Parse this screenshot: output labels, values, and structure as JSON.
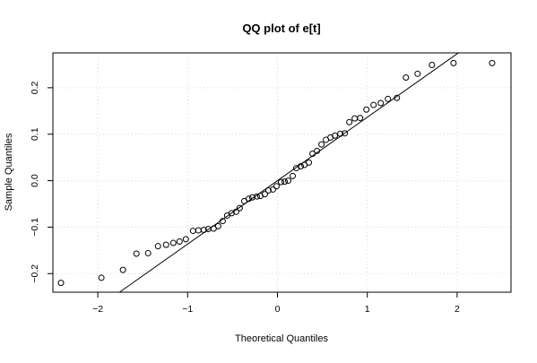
{
  "chart_data": {
    "type": "scatter",
    "title": "QQ plot of e[t]",
    "xlabel": "Theoretical Quantiles",
    "ylabel": "Sample Quantiles",
    "xlim": [
      -2.5,
      2.6
    ],
    "ylim": [
      -0.24,
      0.275
    ],
    "x_ticks": [
      -2,
      -1,
      0,
      1,
      2
    ],
    "x_tick_labels": [
      "−2",
      "−1",
      "0",
      "1",
      "2"
    ],
    "y_ticks": [
      -0.2,
      -0.1,
      0.0,
      0.1,
      0.2
    ],
    "y_tick_labels": [
      "−0.2",
      "−0.1",
      "0.0",
      "0.1",
      "0.2"
    ],
    "grid": true,
    "reference_line": {
      "intercept": 0.0,
      "slope": 0.1365
    },
    "points": {
      "x": [
        -2.41,
        -1.96,
        -1.72,
        -1.57,
        -1.44,
        -1.33,
        -1.24,
        -1.16,
        -1.09,
        -1.02,
        -0.94,
        -0.88,
        -0.82,
        -0.77,
        -0.71,
        -0.66,
        -0.61,
        -0.56,
        -0.51,
        -0.46,
        -0.42,
        -0.37,
        -0.32,
        -0.28,
        -0.23,
        -0.19,
        -0.14,
        -0.1,
        -0.05,
        -0.01,
        0.04,
        0.08,
        0.12,
        0.17,
        0.21,
        0.26,
        0.3,
        0.35,
        0.39,
        0.44,
        0.49,
        0.54,
        0.59,
        0.64,
        0.7,
        0.75,
        0.8,
        0.86,
        0.92,
        0.99,
        1.07,
        1.15,
        1.23,
        1.33,
        1.43,
        1.56,
        1.72,
        1.96,
        2.39
      ],
      "y": [
        -0.22,
        -0.209,
        -0.192,
        -0.157,
        -0.156,
        -0.141,
        -0.138,
        -0.134,
        -0.131,
        -0.126,
        -0.108,
        -0.107,
        -0.106,
        -0.104,
        -0.103,
        -0.098,
        -0.087,
        -0.075,
        -0.07,
        -0.067,
        -0.059,
        -0.044,
        -0.039,
        -0.036,
        -0.034,
        -0.033,
        -0.029,
        -0.021,
        -0.019,
        -0.012,
        -0.003,
        -0.002,
        0.0,
        0.01,
        0.027,
        0.031,
        0.034,
        0.039,
        0.058,
        0.064,
        0.078,
        0.088,
        0.093,
        0.097,
        0.101,
        0.102,
        0.126,
        0.134,
        0.135,
        0.153,
        0.163,
        0.167,
        0.176,
        0.178,
        0.222,
        0.23,
        0.249,
        0.253,
        0.253
      ]
    }
  }
}
